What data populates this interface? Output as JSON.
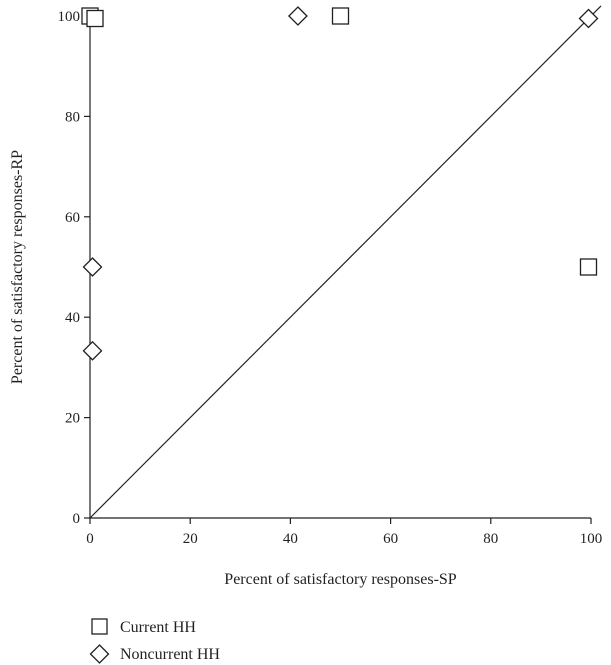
{
  "chart_data": {
    "type": "scatter",
    "title": "",
    "xlabel": "Percent of satisfactory responses-SP",
    "ylabel": "Percent of satisfactory responses-RP",
    "xlim": [
      0,
      100
    ],
    "ylim": [
      0,
      100
    ],
    "xticks": [
      "0",
      "20",
      "40",
      "60",
      "80",
      "100"
    ],
    "yticks": [
      "0",
      "20",
      "40",
      "60",
      "80",
      "100"
    ],
    "grid": false,
    "reference_line": "y = x",
    "legend_position": "bottom-left",
    "series": [
      {
        "name": "Current HH",
        "marker": "square",
        "points": [
          {
            "x": 0,
            "y": 100
          },
          {
            "x": 1,
            "y": 99.5
          },
          {
            "x": 50,
            "y": 100
          },
          {
            "x": 99.5,
            "y": 50
          }
        ]
      },
      {
        "name": "Noncurrent HH",
        "marker": "diamond",
        "points": [
          {
            "x": 41.5,
            "y": 100
          },
          {
            "x": 99.5,
            "y": 99.5
          },
          {
            "x": 0.5,
            "y": 50
          },
          {
            "x": 0.5,
            "y": 33.3
          }
        ]
      }
    ],
    "colors": {
      "ink": "#231f20",
      "marker_fill": "#ffffff"
    }
  }
}
